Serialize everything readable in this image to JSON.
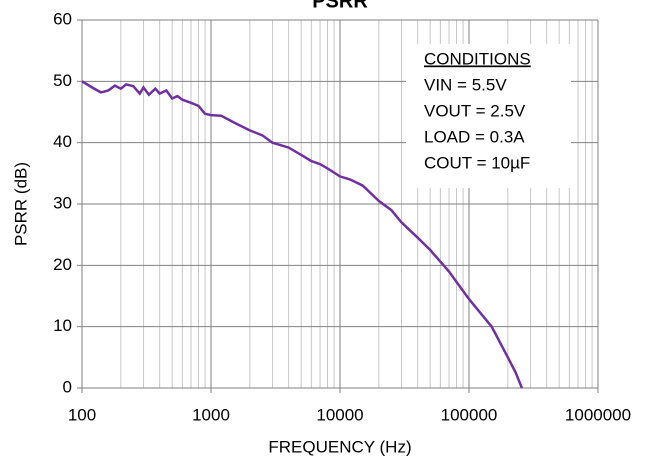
{
  "chart_data": {
    "type": "line",
    "title": "PSRR",
    "x_label": "FREQUENCY (Hz)",
    "y_label": "PSRR (dB)",
    "x": [
      100,
      120,
      140,
      160,
      180,
      200,
      220,
      250,
      280,
      300,
      330,
      370,
      400,
      450,
      500,
      550,
      600,
      700,
      800,
      900,
      1000,
      1200,
      1500,
      2000,
      2500,
      3000,
      4000,
      5000,
      6000,
      7000,
      8000,
      10000,
      12000,
      15000,
      20000,
      25000,
      30000,
      40000,
      50000,
      70000,
      100000,
      150000,
      200000,
      230000,
      257000
    ],
    "series": [
      {
        "name": "PSRR",
        "color": "#7030a0",
        "values": [
          50,
          49,
          48.2,
          48.5,
          49.3,
          48.8,
          49.5,
          49.2,
          48,
          49,
          47.8,
          48.8,
          48,
          48.5,
          47.2,
          47.6,
          47,
          46.5,
          46,
          44.7,
          44.5,
          44.4,
          43.3,
          42,
          41.2,
          40,
          39.2,
          38,
          37,
          36.5,
          35.8,
          34.5,
          34,
          33,
          30.5,
          29,
          27,
          24.5,
          22.5,
          19,
          14.5,
          10,
          5,
          2.5,
          0
        ]
      }
    ],
    "xlim": [
      100,
      1000000
    ],
    "xticks": [
      100,
      1000,
      10000,
      100000,
      1000000
    ],
    "x_log": true,
    "ylim": [
      0,
      60
    ],
    "yticks": [
      0,
      10,
      20,
      30,
      40,
      50,
      60
    ],
    "grid": true,
    "minor_grid": true,
    "annotation": {
      "title": "CONDITIONS",
      "lines": [
        "VIN = 5.5V",
        "VOUT = 2.5V",
        "LOAD = 0.3A",
        "COUT = 10µF"
      ]
    }
  }
}
